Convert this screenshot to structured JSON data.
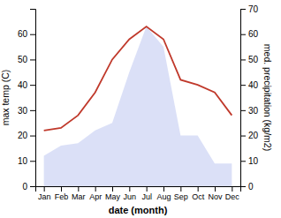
{
  "chart_data": {
    "type": "line",
    "xlabel": "date (month)",
    "ylabel": "max temp (C)",
    "y2label": "med. precipitation (kg/m2)",
    "categories": [
      "Jan",
      "Feb",
      "Mar",
      "Apr",
      "May",
      "Jun",
      "Jul",
      "Aug",
      "Sep",
      "Oct",
      "Nov",
      "Dec"
    ],
    "series": [
      {
        "type": "area",
        "axis": "y2",
        "color": "#b0bbee",
        "values": [
          12,
          16,
          17,
          22,
          25,
          45,
          63,
          55,
          20,
          20,
          9,
          9
        ]
      },
      {
        "type": "line",
        "color": "#c0392b",
        "values": [
          22,
          23,
          28,
          37,
          50,
          58,
          63,
          58,
          42,
          40,
          37,
          28
        ]
      }
    ],
    "ylim": [
      0,
      70
    ],
    "yticks": [
      0,
      10,
      20,
      30,
      40,
      50,
      60
    ],
    "y2lim": [
      0,
      70
    ],
    "y2ticks": [
      0,
      10,
      20,
      30,
      40,
      50,
      60,
      70
    ],
    "grid": false
  }
}
